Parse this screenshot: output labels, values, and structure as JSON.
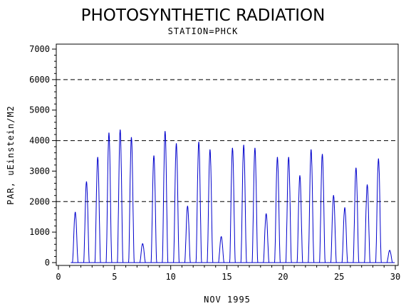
{
  "chart_data": {
    "type": "line",
    "title": "PHOTOSYNTHETIC RADIATION",
    "subtitle": "STATION=PHCK",
    "xlabel": "NOV 1995",
    "ylabel": "PAR, uEinstein/M2",
    "xlim": [
      0,
      30
    ],
    "ylim": [
      0,
      7000
    ],
    "x_ticks": [
      "0",
      "5",
      "10",
      "15",
      "20",
      "25",
      "30"
    ],
    "y_ticks": [
      "0",
      "1000",
      "2000",
      "3000",
      "4000",
      "5000",
      "6000",
      "7000"
    ],
    "reference_lines": [
      2000,
      4000,
      6000
    ],
    "grid": "dashed horizontal reference lines",
    "line_color": "#0000cc",
    "series": [
      {
        "daily_peaks": [
          {
            "day": 1,
            "peak": 1650
          },
          {
            "day": 2,
            "peak": 2650
          },
          {
            "day": 3,
            "peak": 3450
          },
          {
            "day": 4,
            "peak": 4250
          },
          {
            "day": 5,
            "peak": 4350
          },
          {
            "day": 6,
            "peak": 4100
          },
          {
            "day": 7,
            "peak": 620
          },
          {
            "day": 8,
            "peak": 3500
          },
          {
            "day": 9,
            "peak": 4300
          },
          {
            "day": 10,
            "peak": 3900
          },
          {
            "day": 11,
            "peak": 1850
          },
          {
            "day": 12,
            "peak": 3950
          },
          {
            "day": 13,
            "peak": 3700
          },
          {
            "day": 14,
            "peak": 850
          },
          {
            "day": 15,
            "peak": 3750
          },
          {
            "day": 16,
            "peak": 3850
          },
          {
            "day": 17,
            "peak": 3750
          },
          {
            "day": 18,
            "peak": 1600
          },
          {
            "day": 19,
            "peak": 3450
          },
          {
            "day": 20,
            "peak": 3450
          },
          {
            "day": 21,
            "peak": 2850
          },
          {
            "day": 22,
            "peak": 3700
          },
          {
            "day": 23,
            "peak": 3550
          },
          {
            "day": 24,
            "peak": 2200
          },
          {
            "day": 25,
            "peak": 1800
          },
          {
            "day": 26,
            "peak": 3100
          },
          {
            "day": 27,
            "peak": 2550
          },
          {
            "day": 28,
            "peak": 3400
          },
          {
            "day": 29,
            "peak": 400
          }
        ]
      }
    ]
  }
}
